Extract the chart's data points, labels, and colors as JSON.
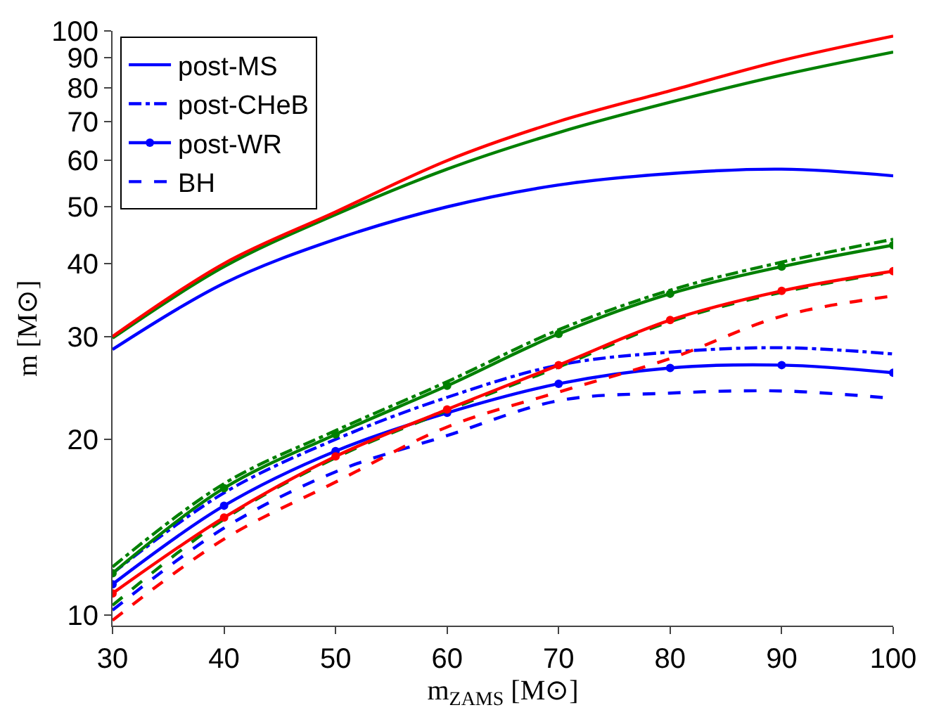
{
  "chart_data": {
    "type": "line",
    "xlabel": "m$_{ZAMS}$ [M⊙]",
    "ylabel": "m [M⊙]",
    "x": [
      30,
      40,
      50,
      60,
      70,
      80,
      90,
      100
    ],
    "xlim": [
      30,
      100
    ],
    "xticks": [
      30,
      40,
      50,
      60,
      70,
      80,
      90,
      100
    ],
    "ylim": [
      9.6,
      100
    ],
    "yticks": [
      10,
      20,
      30,
      40,
      50,
      60,
      70,
      80,
      90,
      100
    ],
    "log": "y",
    "legend": "top left",
    "series": [
      {
        "name": "post-MS",
        "color": "#0000ff",
        "line_style": "solid",
        "marker": "none",
        "values": [
          28.5,
          37,
          44,
          50,
          54.5,
          57,
          58,
          56.5
        ]
      },
      {
        "name": "post-CHeB",
        "color": "#0000ff",
        "line_style": "dashdot",
        "marker": "none",
        "values": [
          11.8,
          16.2,
          20.0,
          23.6,
          26.8,
          28.2,
          28.7,
          28
        ]
      },
      {
        "name": "post-WR",
        "color": "#0000ff",
        "line_style": "solid",
        "marker": "circle",
        "values": [
          11.3,
          15.4,
          19.1,
          22.2,
          24.9,
          26.5,
          26.8,
          26
        ]
      },
      {
        "name": "BH",
        "color": "#0000ff",
        "line_style": "dashed",
        "marker": "none",
        "values": [
          10.2,
          14.1,
          17.6,
          20.3,
          23.3,
          24,
          24.2,
          23.5
        ]
      },
      {
        "color": "#008000",
        "line_style": "solid",
        "marker": "none",
        "values": [
          29.8,
          39.5,
          48.5,
          58,
          67,
          75.5,
          84,
          92
        ]
      },
      {
        "color": "#008000",
        "line_style": "dashdot",
        "marker": "none",
        "values": [
          12.1,
          16.8,
          20.7,
          25.1,
          30.8,
          36,
          40.2,
          44
        ]
      },
      {
        "color": "#008000",
        "line_style": "solid",
        "marker": "circle",
        "values": [
          11.8,
          16.5,
          20.4,
          24.7,
          30.3,
          35.5,
          39.5,
          43
        ]
      },
      {
        "color": "#008000",
        "line_style": "dashed",
        "marker": "none",
        "values": [
          10.4,
          14.6,
          18.6,
          22.4,
          26.6,
          31.8,
          35.7,
          38.7
        ]
      },
      {
        "color": "#ff0000",
        "line_style": "solid",
        "marker": "none",
        "values": [
          30,
          40,
          49,
          60,
          70,
          79,
          89,
          98
        ]
      },
      {
        "color": "#ff0000",
        "line_style": "solid",
        "marker": "circle",
        "values": [
          10.9,
          14.7,
          18.7,
          22.5,
          26.8,
          32,
          35.9,
          38.8
        ]
      },
      {
        "color": "#ff0000",
        "line_style": "dashed",
        "marker": "none",
        "values": [
          9.8,
          13.5,
          16.9,
          21.0,
          24.1,
          27.5,
          32.5,
          35.2
        ]
      }
    ]
  }
}
